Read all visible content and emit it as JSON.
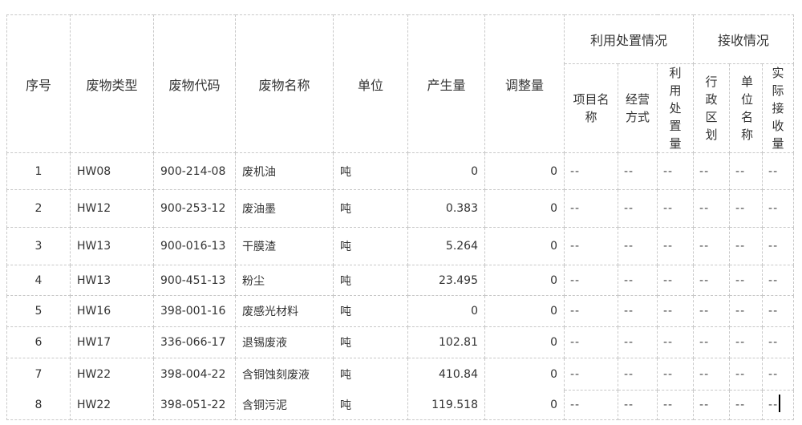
{
  "headers": {
    "seq": "序号",
    "waste_type": "废物类型",
    "waste_code": "废物代码",
    "waste_name": "废物名称",
    "unit": "单位",
    "output": "产生量",
    "adjustment": "调整量",
    "utilization_group": "利用处置情况",
    "project_name": "项目名称",
    "operation_mode": "经营方式",
    "utilization_amount": "利用处置量",
    "receiving_group": "接收情况",
    "admin_region": "行政区划",
    "unit_name": "单位名称",
    "actual_received": "实际接收量"
  },
  "rows": [
    {
      "seq": "1",
      "type": "HW08",
      "code": "900-214-08",
      "name": "废机油",
      "unit": "吨",
      "output": "0",
      "adjust": "0",
      "c1": "--",
      "c2": "--",
      "c3": "--",
      "c4": "--",
      "c5": "--",
      "c6": "--"
    },
    {
      "seq": "2",
      "type": "HW12",
      "code": "900-253-12",
      "name": "废油墨",
      "unit": "吨",
      "output": "0.383",
      "adjust": "0",
      "c1": "--",
      "c2": "--",
      "c3": "--",
      "c4": "--",
      "c5": "--",
      "c6": "--"
    },
    {
      "seq": "3",
      "type": "HW13",
      "code": "900-016-13",
      "name": "干膜渣",
      "unit": "吨",
      "output": "5.264",
      "adjust": "0",
      "c1": "--",
      "c2": "--",
      "c3": "--",
      "c4": "--",
      "c5": "--",
      "c6": "--"
    },
    {
      "seq": "4",
      "type": "HW13",
      "code": "900-451-13",
      "name": "粉尘",
      "unit": "吨",
      "output": "23.495",
      "adjust": "0",
      "c1": "--",
      "c2": "--",
      "c3": "--",
      "c4": "--",
      "c5": "--",
      "c6": "--"
    },
    {
      "seq": "5",
      "type": "HW16",
      "code": "398-001-16",
      "name": "废感光材料",
      "unit": "吨",
      "output": "0",
      "adjust": "0",
      "c1": "--",
      "c2": "--",
      "c3": "--",
      "c4": "--",
      "c5": "--",
      "c6": "--"
    },
    {
      "seq": "6",
      "type": "HW17",
      "code": "336-066-17",
      "name": "退锡废液",
      "unit": "吨",
      "output": "102.81",
      "adjust": "0",
      "c1": "--",
      "c2": "--",
      "c3": "--",
      "c4": "--",
      "c5": "--",
      "c6": "--"
    },
    {
      "seq": "7",
      "type": "HW22",
      "code": "398-004-22",
      "name": "含铜蚀刻废液",
      "unit": "吨",
      "output": "410.84",
      "adjust": "0",
      "c1": "--",
      "c2": "--",
      "c3": "--",
      "c4": "--",
      "c5": "--",
      "c6": "--"
    },
    {
      "seq": "8",
      "type": "HW22",
      "code": "398-051-22",
      "name": "含铜污泥",
      "unit": "吨",
      "output": "119.518",
      "adjust": "0",
      "c1": "--",
      "c2": "--",
      "c3": "--",
      "c4": "--",
      "c5": "--",
      "c6": "--"
    }
  ]
}
